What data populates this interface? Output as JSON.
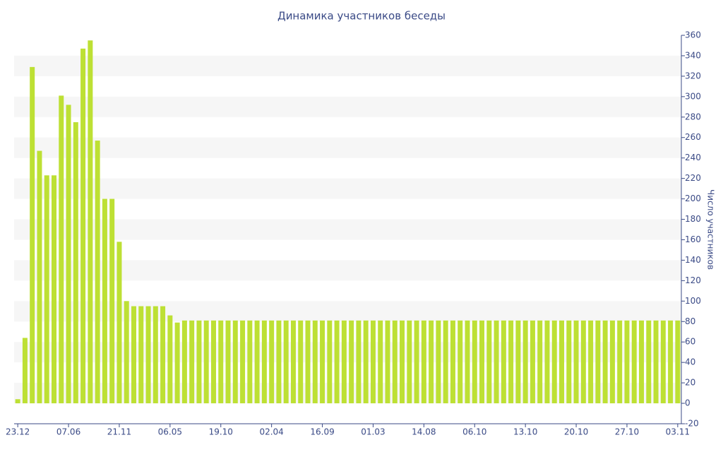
{
  "chart_data": {
    "type": "bar",
    "title": "Динамика участников беседы",
    "y_label": "Число участников",
    "categories": [
      "23.12",
      null,
      null,
      null,
      null,
      null,
      null,
      "07.06",
      null,
      null,
      null,
      null,
      null,
      null,
      "21.11",
      null,
      null,
      null,
      null,
      null,
      null,
      "06.05",
      null,
      null,
      null,
      null,
      null,
      null,
      "19.10",
      null,
      null,
      null,
      null,
      null,
      null,
      "02.04",
      null,
      null,
      null,
      null,
      null,
      null,
      "16.09",
      null,
      null,
      null,
      null,
      null,
      null,
      "01.03",
      null,
      null,
      null,
      null,
      null,
      null,
      "14.08",
      null,
      null,
      null,
      null,
      null,
      null,
      "06.10",
      null,
      null,
      null,
      null,
      null,
      null,
      "13.10",
      null,
      null,
      null,
      null,
      null,
      null,
      "20.10",
      null,
      null,
      null,
      null,
      null,
      null,
      "27.10",
      null,
      null,
      null,
      null,
      null,
      null,
      "03.11"
    ],
    "values": [
      4,
      64,
      329,
      247,
      223,
      223,
      301,
      292,
      275,
      347,
      355,
      257,
      200,
      200,
      158,
      100,
      95,
      95,
      95,
      95,
      95,
      86,
      79,
      81,
      81,
      81,
      81,
      81,
      81,
      81,
      81,
      81,
      81,
      81,
      81,
      81,
      81,
      81,
      81,
      81,
      81,
      81,
      81,
      81,
      81,
      81,
      81,
      81,
      81,
      81,
      81,
      81,
      81,
      81,
      81,
      81,
      81,
      81,
      81,
      81,
      81,
      81,
      81,
      81,
      81,
      81,
      81,
      81,
      81,
      81,
      81,
      81,
      81,
      81,
      81,
      81,
      81,
      81,
      81,
      81,
      81,
      81,
      81,
      81,
      81,
      81,
      81,
      81,
      81,
      81,
      81,
      81
    ],
    "color": "#bde034",
    "ylim": [
      -20,
      360
    ],
    "yticks": [
      -20,
      0,
      20,
      40,
      60,
      80,
      100,
      120,
      140,
      160,
      180,
      200,
      220,
      240,
      260,
      280,
      300,
      320,
      340,
      360
    ],
    "grid": "bands",
    "y_axis_side": "right"
  }
}
